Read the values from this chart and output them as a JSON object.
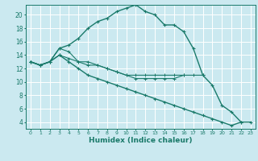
{
  "xlabel": "Humidex (Indice chaleur)",
  "xlim": [
    -0.5,
    23.5
  ],
  "ylim": [
    3.0,
    21.5
  ],
  "xticks": [
    0,
    1,
    2,
    3,
    4,
    5,
    6,
    7,
    8,
    9,
    10,
    11,
    12,
    13,
    14,
    15,
    16,
    17,
    18,
    19,
    20,
    21,
    22,
    23
  ],
  "yticks": [
    4,
    6,
    8,
    10,
    12,
    14,
    16,
    18,
    20
  ],
  "bg_color": "#cbe9f0",
  "grid_color": "#ffffff",
  "line_color": "#1a7a6a",
  "line1_x": [
    0,
    1,
    2,
    3,
    4,
    5,
    6,
    7,
    8,
    9,
    10,
    11,
    12,
    13,
    14,
    15,
    16,
    17,
    18,
    19,
    20,
    21,
    22
  ],
  "line1_y": [
    13.0,
    12.5,
    13.0,
    15.0,
    15.5,
    16.5,
    18.0,
    19.0,
    19.5,
    20.5,
    21.0,
    21.5,
    20.5,
    20.0,
    18.5,
    18.5,
    17.5,
    15.0,
    11.0,
    9.5,
    6.5,
    5.5,
    4.0
  ],
  "line2_x": [
    0,
    1,
    2,
    3,
    4,
    5,
    6,
    7,
    8,
    9,
    10,
    11,
    12,
    13,
    14,
    15,
    16
  ],
  "line2_y": [
    13.0,
    12.5,
    13.0,
    15.0,
    14.5,
    13.0,
    13.0,
    12.5,
    12.0,
    11.5,
    11.0,
    11.0,
    11.0,
    11.0,
    11.0,
    11.0,
    11.0
  ],
  "line3_x": [
    0,
    1,
    2,
    3,
    4,
    5,
    6,
    7,
    8,
    9,
    10,
    11,
    12,
    13,
    14,
    15,
    16,
    17,
    18
  ],
  "line3_y": [
    13.0,
    12.5,
    13.0,
    14.0,
    13.5,
    13.0,
    12.5,
    12.5,
    12.0,
    11.5,
    11.0,
    10.5,
    10.5,
    10.5,
    10.5,
    10.5,
    11.0,
    11.0,
    11.0
  ],
  "line4_x": [
    0,
    1,
    2,
    3,
    4,
    5,
    6,
    7,
    8,
    9,
    10,
    11,
    12,
    13,
    14,
    15,
    16,
    17,
    18,
    19,
    20,
    21,
    22,
    23
  ],
  "line4_y": [
    13.0,
    12.5,
    13.0,
    14.0,
    13.0,
    12.0,
    11.0,
    10.5,
    10.0,
    9.5,
    9.0,
    8.5,
    8.0,
    7.5,
    7.0,
    6.5,
    6.0,
    5.5,
    5.0,
    4.5,
    4.0,
    3.5,
    4.0,
    4.0
  ]
}
